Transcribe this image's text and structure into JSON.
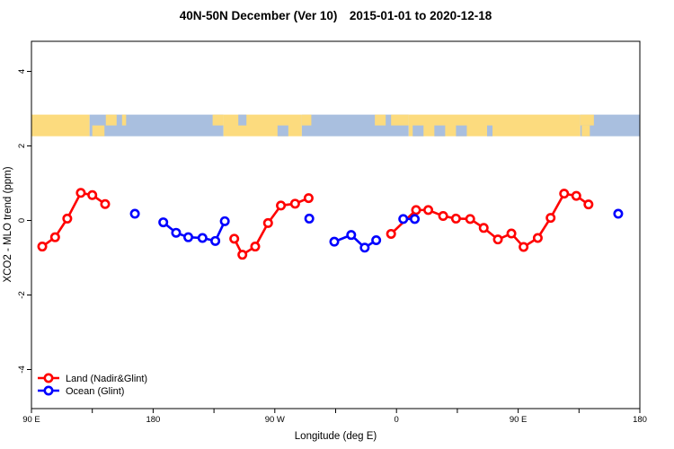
{
  "figure": {
    "background": "#ffffff"
  },
  "chart_data": {
    "type": "scatter",
    "title": "40N-50N December (Ver 10) 2015-01-01 to 2020-12-18",
    "xlabel": "Longitude (deg E)",
    "ylabel": "XCO2 - MLO trend (ppm)",
    "x_axis": {
      "min": 90,
      "max": 540,
      "minor_tick_step": 45,
      "tick_labels": [
        {
          "lon": 90,
          "label": "90 E"
        },
        {
          "lon": 180,
          "label": "180"
        },
        {
          "lon": 270,
          "label": "90 W"
        },
        {
          "lon": 360,
          "label": "0"
        },
        {
          "lon": 450,
          "label": "90 E"
        },
        {
          "lon": 540,
          "label": "180"
        }
      ]
    },
    "y_axis": {
      "min": -5.05,
      "max": 4.81,
      "ticks": [
        -4,
        -2,
        0,
        2,
        4
      ],
      "tick_labels": [
        "-4",
        "-2",
        "0",
        "2",
        "4"
      ]
    },
    "series": [
      {
        "name": "Land (Nadir&Glint)",
        "color": "#ff0000",
        "marker": "open-circle",
        "segments": [
          [
            [
              98,
              -0.7
            ],
            [
              107.5,
              -0.45
            ],
            [
              116.5,
              0.05
            ],
            [
              126.5,
              0.74
            ],
            [
              135,
              0.68
            ],
            [
              144.5,
              0.44
            ]
          ],
          [
            [
              240,
              -0.49
            ],
            [
              246,
              -0.92
            ],
            [
              255.5,
              -0.7
            ],
            [
              265,
              -0.07
            ],
            [
              274.5,
              0.4
            ],
            [
              285,
              0.45
            ],
            [
              295,
              0.6
            ]
          ],
          [
            [
              356,
              -0.36
            ],
            [
              374.5,
              0.28
            ],
            [
              383.5,
              0.28
            ],
            [
              394.5,
              0.12
            ],
            [
              404,
              0.05
            ],
            [
              414.5,
              0.04
            ],
            [
              424.5,
              -0.2
            ],
            [
              435,
              -0.51
            ],
            [
              445,
              -0.35
            ],
            [
              454,
              -0.71
            ],
            [
              464.5,
              -0.47
            ],
            [
              474,
              0.07
            ],
            [
              484,
              0.72
            ],
            [
              493,
              0.66
            ],
            [
              502,
              0.43
            ]
          ]
        ]
      },
      {
        "name": "Ocean (Glint)",
        "color": "#0000ff",
        "marker": "open-circle",
        "segments": [
          [
            [
              166.5,
              0.18
            ]
          ],
          [
            [
              187.5,
              -0.05
            ],
            [
              197,
              -0.33
            ],
            [
              206,
              -0.45
            ],
            [
              216.5,
              -0.47
            ],
            [
              226,
              -0.55
            ],
            [
              233,
              -0.02
            ]
          ],
          [
            [
              295.5,
              0.05
            ]
          ],
          [
            [
              314,
              -0.57
            ],
            [
              326.5,
              -0.39
            ],
            [
              336.5,
              -0.73
            ],
            [
              345,
              -0.53
            ]
          ],
          [
            [
              365,
              0.04
            ],
            [
              373.5,
              0.04
            ]
          ],
          [
            [
              524,
              0.18
            ]
          ]
        ]
      }
    ],
    "map_band": {
      "value_range": [
        2.26,
        2.84
      ],
      "land_color": "#fcdb7e",
      "ocean_color": "#a9bfdf",
      "base_segments": [
        {
          "from": 90,
          "to": 133,
          "type": "land"
        },
        {
          "from": 133,
          "to": 232,
          "type": "ocean"
        },
        {
          "from": 232,
          "to": 290,
          "type": "land"
        },
        {
          "from": 290,
          "to": 369,
          "type": "ocean"
        },
        {
          "from": 369,
          "to": 496,
          "type": "land"
        },
        {
          "from": 496,
          "to": 540,
          "type": "ocean"
        }
      ],
      "overlays": [
        {
          "from": 135,
          "to": 144,
          "half": "bottom",
          "type": "land"
        },
        {
          "from": 145,
          "to": 153,
          "half": "top",
          "type": "land"
        },
        {
          "from": 157,
          "to": 160,
          "half": "top",
          "type": "land"
        },
        {
          "from": 224,
          "to": 232,
          "half": "top",
          "type": "land"
        },
        {
          "from": 243,
          "to": 249,
          "half": "top",
          "type": "ocean"
        },
        {
          "from": 272,
          "to": 280,
          "half": "bottom",
          "type": "ocean"
        },
        {
          "from": 290,
          "to": 297,
          "half": "top",
          "type": "land"
        },
        {
          "from": 344,
          "to": 352,
          "half": "top",
          "type": "land"
        },
        {
          "from": 356,
          "to": 369,
          "half": "top",
          "type": "land"
        },
        {
          "from": 372,
          "to": 380,
          "half": "bottom",
          "type": "ocean"
        },
        {
          "from": 388,
          "to": 396,
          "half": "bottom",
          "type": "ocean"
        },
        {
          "from": 404,
          "to": 412,
          "half": "bottom",
          "type": "ocean"
        },
        {
          "from": 427,
          "to": 431,
          "half": "bottom",
          "type": "ocean"
        },
        {
          "from": 496,
          "to": 506,
          "half": "top",
          "type": "land"
        },
        {
          "from": 497,
          "to": 503,
          "half": "bottom",
          "type": "land"
        }
      ]
    },
    "legend": {
      "position": "bottom-left",
      "entries": [
        {
          "label": "Land (Nadir&Glint)",
          "color": "#ff0000"
        },
        {
          "label": "Ocean (Glint)",
          "color": "#0000ff"
        }
      ]
    }
  }
}
